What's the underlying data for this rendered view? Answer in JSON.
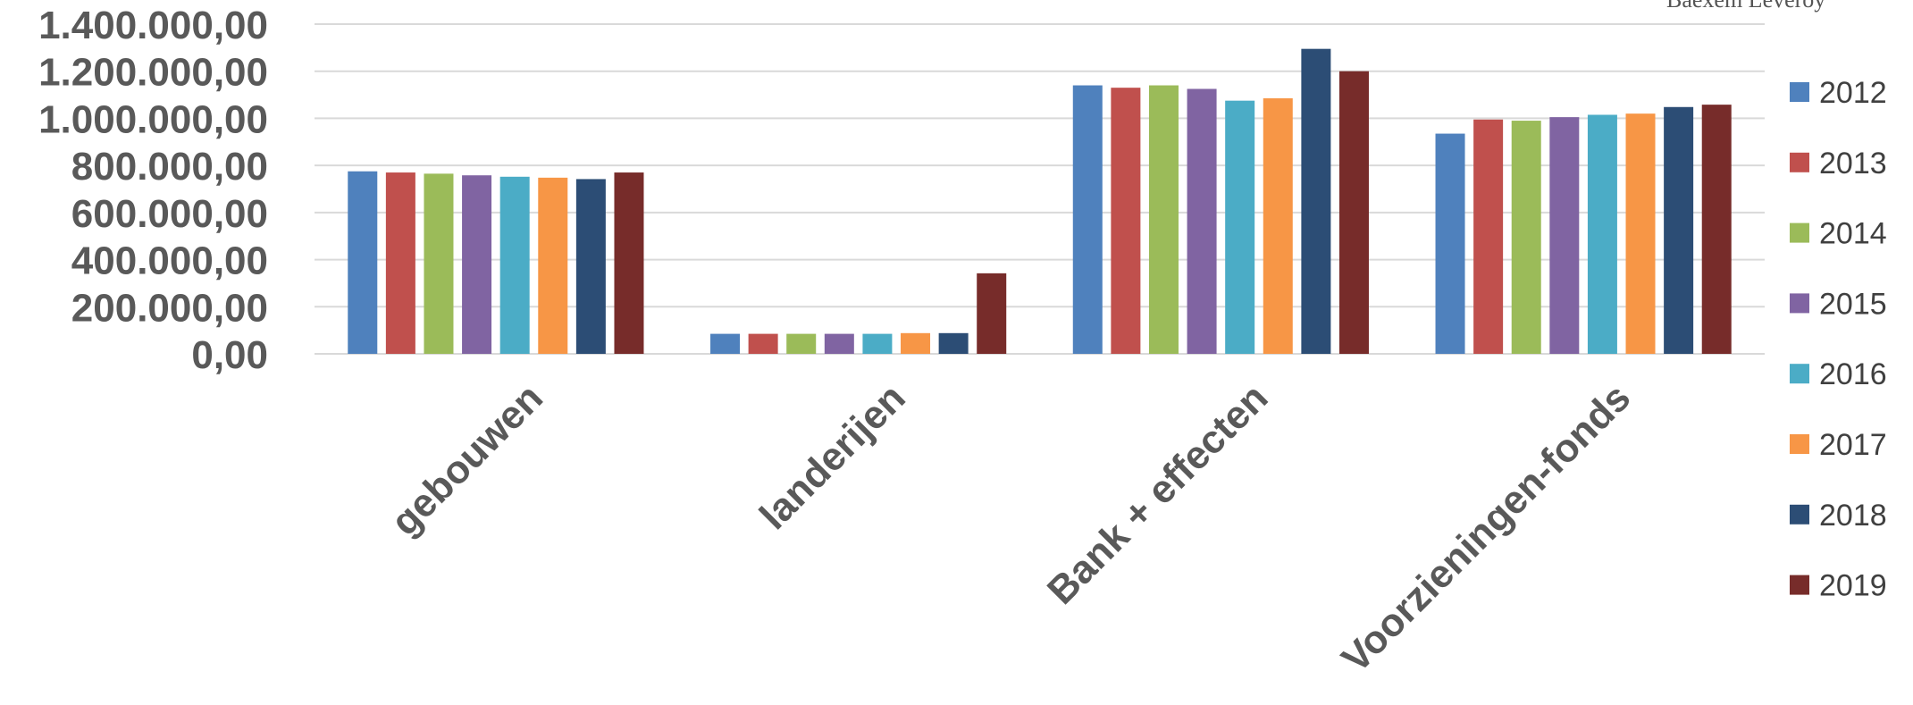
{
  "chart_data": {
    "type": "bar",
    "title": "",
    "xlabel": "",
    "ylabel": "",
    "ylim": [
      0,
      1400000
    ],
    "y_ticks": [
      "0,00",
      "200.000,00",
      "400.000,00",
      "600.000,00",
      "800.000,00",
      "1.000.000,00",
      "1.200.000,00",
      "1.400.000,00"
    ],
    "categories": [
      "gebouwen",
      "landerijen",
      "Bank + effecten",
      "Voorzieningen-fonds"
    ],
    "series": [
      {
        "name": "2012",
        "color": "#4F81BD",
        "values": [
          775000,
          85000,
          1140000,
          935000
        ]
      },
      {
        "name": "2013",
        "color": "#C0504D",
        "values": [
          770000,
          85000,
          1130000,
          995000
        ]
      },
      {
        "name": "2014",
        "color": "#9BBB59",
        "values": [
          765000,
          85000,
          1140000,
          990000
        ]
      },
      {
        "name": "2015",
        "color": "#8064A2",
        "values": [
          758000,
          85000,
          1125000,
          1005000
        ]
      },
      {
        "name": "2016",
        "color": "#4BACC6",
        "values": [
          752000,
          85000,
          1075000,
          1015000
        ]
      },
      {
        "name": "2017",
        "color": "#F79646",
        "values": [
          748000,
          88000,
          1085000,
          1020000
        ]
      },
      {
        "name": "2018",
        "color": "#2C4D75",
        "values": [
          742000,
          88000,
          1295000,
          1048000
        ]
      },
      {
        "name": "2019",
        "color": "#772C2A",
        "values": [
          770000,
          342000,
          1200000,
          1058000
        ]
      }
    ],
    "grid": true,
    "legend_position": "right",
    "clipped_header": "Baexem  Leveroy"
  }
}
